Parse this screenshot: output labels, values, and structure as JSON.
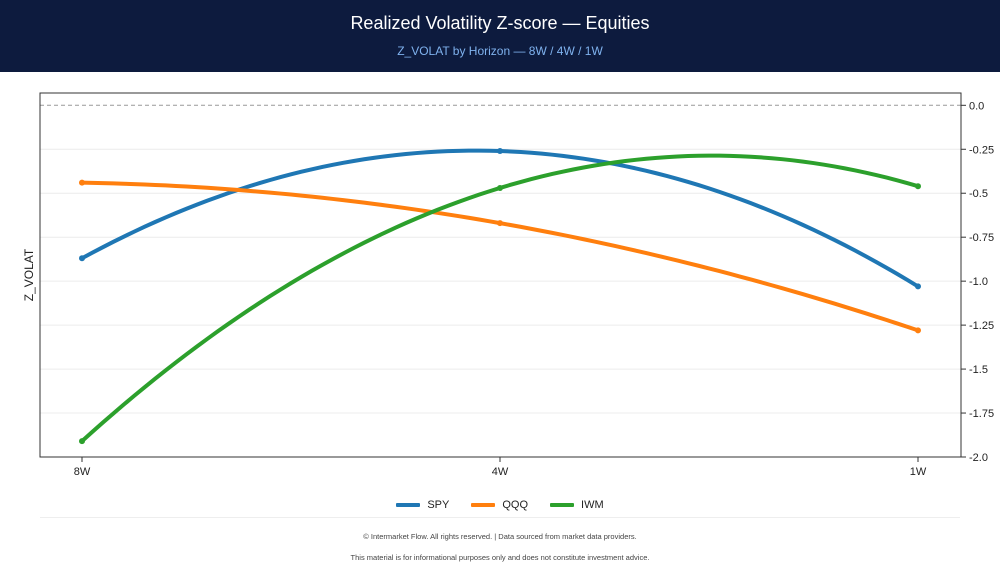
{
  "header": {
    "title": "Realized Volatility Z-score — Equities",
    "subtitle": "Z_VOLAT by Horizon — 8W / 4W / 1W"
  },
  "chart_data": {
    "type": "line",
    "title": "Realized Volatility Z-score — Equities",
    "subtitle": "Z_VOLAT by Horizon — 8W / 4W / 1W",
    "xlabel": "",
    "ylabel": "Z_VOLAT",
    "categories": [
      "8W",
      "4W",
      "1W"
    ],
    "y_axis_position": "right",
    "ylim": [
      -2.0,
      0.07
    ],
    "yticks": [
      0.0,
      -0.25,
      -0.5,
      -0.75,
      -1.0,
      -1.25,
      -1.5,
      -1.75,
      -2.0
    ],
    "ytick_labels": [
      "0.0",
      "-0.25",
      "-0.5",
      "-0.75",
      "-1.0",
      "-1.25",
      "-1.5",
      "-1.75",
      "-2.0"
    ],
    "zero_reference_line": true,
    "grid": "horizontal",
    "smooth": true,
    "legend_position": "bottom-center",
    "series": [
      {
        "name": "SPY",
        "color": "#1f77b4",
        "values": [
          -0.87,
          -0.26,
          -1.03
        ]
      },
      {
        "name": "QQQ",
        "color": "#ff7f0e",
        "values": [
          -0.44,
          -0.67,
          -1.28
        ]
      },
      {
        "name": "IWM",
        "color": "#2ca02c",
        "values": [
          -1.91,
          -0.47,
          -0.46
        ]
      }
    ]
  },
  "footer": {
    "line1": "© Intermarket Flow. All rights reserved.  |  Data sourced from market data providers.",
    "line2": "This material is for informational purposes only and does not constitute investment advice."
  }
}
